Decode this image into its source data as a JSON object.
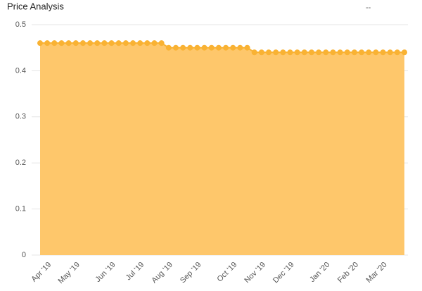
{
  "chart_data": {
    "type": "area",
    "title": "Price Analysis",
    "annotation": "--",
    "categories": [
      null,
      "Apr '19",
      null,
      null,
      null,
      "May '19",
      null,
      null,
      null,
      null,
      "Jun '19",
      null,
      null,
      null,
      "Jul '19",
      null,
      null,
      null,
      "Aug '19",
      null,
      null,
      null,
      "Sep '19",
      null,
      null,
      null,
      null,
      "Oct '19",
      null,
      null,
      null,
      "Nov '19",
      null,
      null,
      null,
      "Dec '19",
      null,
      null,
      null,
      null,
      "Jan '20",
      null,
      null,
      null,
      "Feb '20",
      null,
      null,
      null,
      "Mar '20",
      null,
      null,
      null
    ],
    "values": [
      0.46,
      0.46,
      0.46,
      0.46,
      0.46,
      0.46,
      0.46,
      0.46,
      0.46,
      0.46,
      0.46,
      0.46,
      0.46,
      0.46,
      0.46,
      0.46,
      0.46,
      0.46,
      0.45,
      0.45,
      0.45,
      0.45,
      0.45,
      0.45,
      0.45,
      0.45,
      0.45,
      0.45,
      0.45,
      0.45,
      0.44,
      0.44,
      0.44,
      0.44,
      0.44,
      0.44,
      0.44,
      0.44,
      0.44,
      0.44,
      0.44,
      0.44,
      0.44,
      0.44,
      0.44,
      0.44,
      0.44,
      0.44,
      0.44,
      0.44,
      0.44,
      0.44
    ],
    "color": "#fec76b",
    "marker_color": "#f9b233",
    "ylim": [
      0,
      0.5
    ],
    "yticks": [
      0,
      0.1,
      0.2,
      0.3,
      0.4,
      0.5
    ],
    "grid": true
  }
}
